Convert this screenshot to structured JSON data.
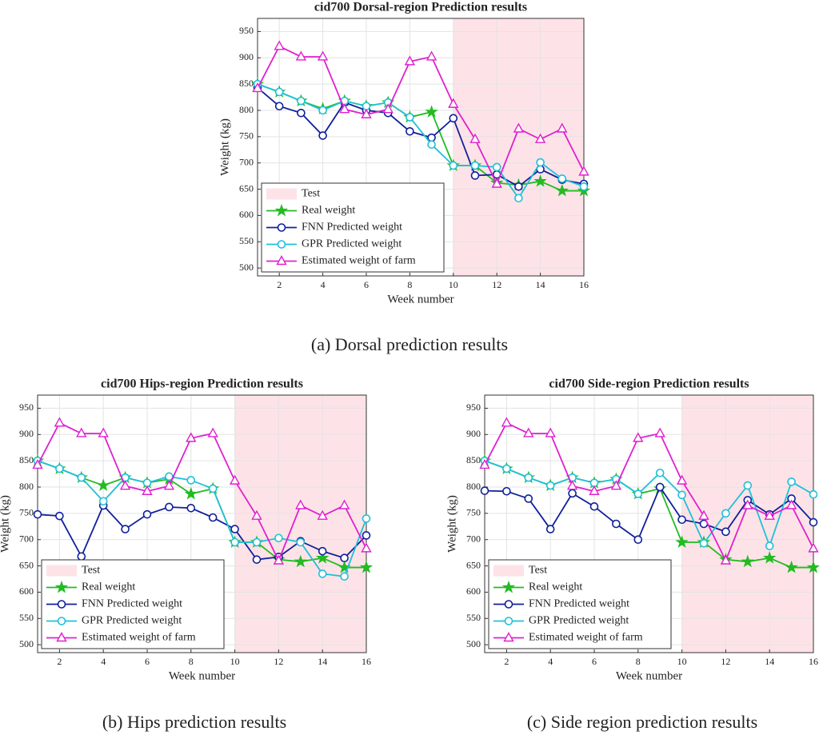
{
  "chart_data": [
    {
      "type": "line",
      "title": "cid700 Dorsal-region Prediction results",
      "caption": "(a) Dorsal prediction results",
      "x_label": "Week number",
      "y_label": "Weight (kg)",
      "x": [
        1,
        2,
        3,
        4,
        5,
        6,
        7,
        8,
        9,
        10,
        11,
        12,
        13,
        14,
        15,
        16
      ],
      "xlim": [
        1,
        16
      ],
      "ylim": [
        485,
        975
      ],
      "xticks": [
        2,
        4,
        6,
        8,
        10,
        12,
        14,
        16
      ],
      "yticks": [
        500,
        550,
        600,
        650,
        700,
        750,
        800,
        850,
        900,
        950
      ],
      "grid": true,
      "legend": "lower left",
      "shade": {
        "name": "Test",
        "color": "#fde3e7",
        "x": [
          10,
          16
        ]
      },
      "series": [
        {
          "name": "Real weight",
          "color": "#22bb22",
          "marker": "star",
          "values": [
            850,
            835,
            818,
            803,
            818,
            808,
            815,
            787,
            797,
            695,
            695,
            662,
            658,
            665,
            647,
            647
          ]
        },
        {
          "name": "FNN Predicted weight",
          "color": "#10209a",
          "marker": "circle",
          "values": [
            843,
            808,
            795,
            752,
            815,
            800,
            795,
            760,
            748,
            785,
            676,
            678,
            655,
            688,
            668,
            660
          ]
        },
        {
          "name": "GPR Predicted weight",
          "color": "#20c0d8",
          "marker": "circle",
          "values": [
            850,
            835,
            818,
            800,
            818,
            808,
            815,
            787,
            735,
            695,
            695,
            692,
            633,
            701,
            670,
            655
          ]
        },
        {
          "name": "Estimated weight of farm",
          "color": "#e020d0",
          "marker": "triangle",
          "values": [
            842,
            922,
            902,
            902,
            802,
            792,
            802,
            893,
            902,
            812,
            745,
            660,
            765,
            745,
            765,
            683
          ]
        }
      ]
    },
    {
      "type": "line",
      "title": "cid700 Hips-region Prediction results",
      "caption": "(b) Hips prediction results",
      "x_label": "Week number",
      "y_label": "Weight (kg)",
      "x": [
        1,
        2,
        3,
        4,
        5,
        6,
        7,
        8,
        9,
        10,
        11,
        12,
        13,
        14,
        15,
        16
      ],
      "xlim": [
        1,
        16
      ],
      "ylim": [
        485,
        975
      ],
      "xticks": [
        2,
        4,
        6,
        8,
        10,
        12,
        14,
        16
      ],
      "yticks": [
        500,
        550,
        600,
        650,
        700,
        750,
        800,
        850,
        900,
        950
      ],
      "grid": true,
      "legend": "lower left",
      "shade": {
        "name": "Test",
        "color": "#fde3e7",
        "x": [
          10,
          16
        ]
      },
      "series": [
        {
          "name": "Real weight",
          "color": "#22bb22",
          "marker": "star",
          "values": [
            850,
            835,
            818,
            803,
            818,
            808,
            815,
            787,
            797,
            695,
            695,
            662,
            658,
            665,
            647,
            647
          ]
        },
        {
          "name": "FNN Predicted weight",
          "color": "#10209a",
          "marker": "circle",
          "values": [
            748,
            745,
            668,
            765,
            720,
            748,
            762,
            760,
            742,
            720,
            662,
            667,
            697,
            678,
            665,
            708
          ]
        },
        {
          "name": "GPR Predicted weight",
          "color": "#20c0d8",
          "marker": "circle",
          "values": [
            850,
            835,
            818,
            773,
            818,
            808,
            820,
            813,
            797,
            695,
            695,
            703,
            695,
            635,
            630,
            740
          ]
        },
        {
          "name": "Estimated weight of farm",
          "color": "#e020d0",
          "marker": "triangle",
          "values": [
            842,
            922,
            902,
            902,
            802,
            792,
            802,
            893,
            902,
            812,
            745,
            660,
            765,
            745,
            765,
            683
          ]
        }
      ]
    },
    {
      "type": "line",
      "title": "cid700 Side-region Prediction results",
      "caption": "(c) Side region prediction results",
      "x_label": "Week number",
      "y_label": "Weight (kg)",
      "x": [
        1,
        2,
        3,
        4,
        5,
        6,
        7,
        8,
        9,
        10,
        11,
        12,
        13,
        14,
        15,
        16
      ],
      "xlim": [
        1,
        16
      ],
      "ylim": [
        485,
        975
      ],
      "xticks": [
        2,
        4,
        6,
        8,
        10,
        12,
        14,
        16
      ],
      "yticks": [
        500,
        550,
        600,
        650,
        700,
        750,
        800,
        850,
        900,
        950
      ],
      "grid": true,
      "legend": "lower left",
      "shade": {
        "name": "Test",
        "color": "#fde3e7",
        "x": [
          10,
          16
        ]
      },
      "series": [
        {
          "name": "Real weight",
          "color": "#22bb22",
          "marker": "star",
          "values": [
            850,
            835,
            818,
            803,
            818,
            808,
            815,
            787,
            797,
            695,
            695,
            662,
            658,
            665,
            647,
            647
          ]
        },
        {
          "name": "FNN Predicted weight",
          "color": "#10209a",
          "marker": "circle",
          "values": [
            793,
            792,
            778,
            720,
            788,
            763,
            730,
            700,
            800,
            738,
            730,
            715,
            775,
            748,
            778,
            733
          ]
        },
        {
          "name": "GPR Predicted weight",
          "color": "#20c0d8",
          "marker": "circle",
          "values": [
            850,
            835,
            818,
            803,
            818,
            808,
            815,
            787,
            827,
            785,
            693,
            750,
            803,
            688,
            810,
            786
          ]
        },
        {
          "name": "Estimated weight of farm",
          "color": "#e020d0",
          "marker": "triangle",
          "values": [
            842,
            922,
            902,
            902,
            802,
            792,
            802,
            893,
            902,
            812,
            745,
            660,
            765,
            745,
            765,
            683
          ]
        }
      ]
    }
  ]
}
